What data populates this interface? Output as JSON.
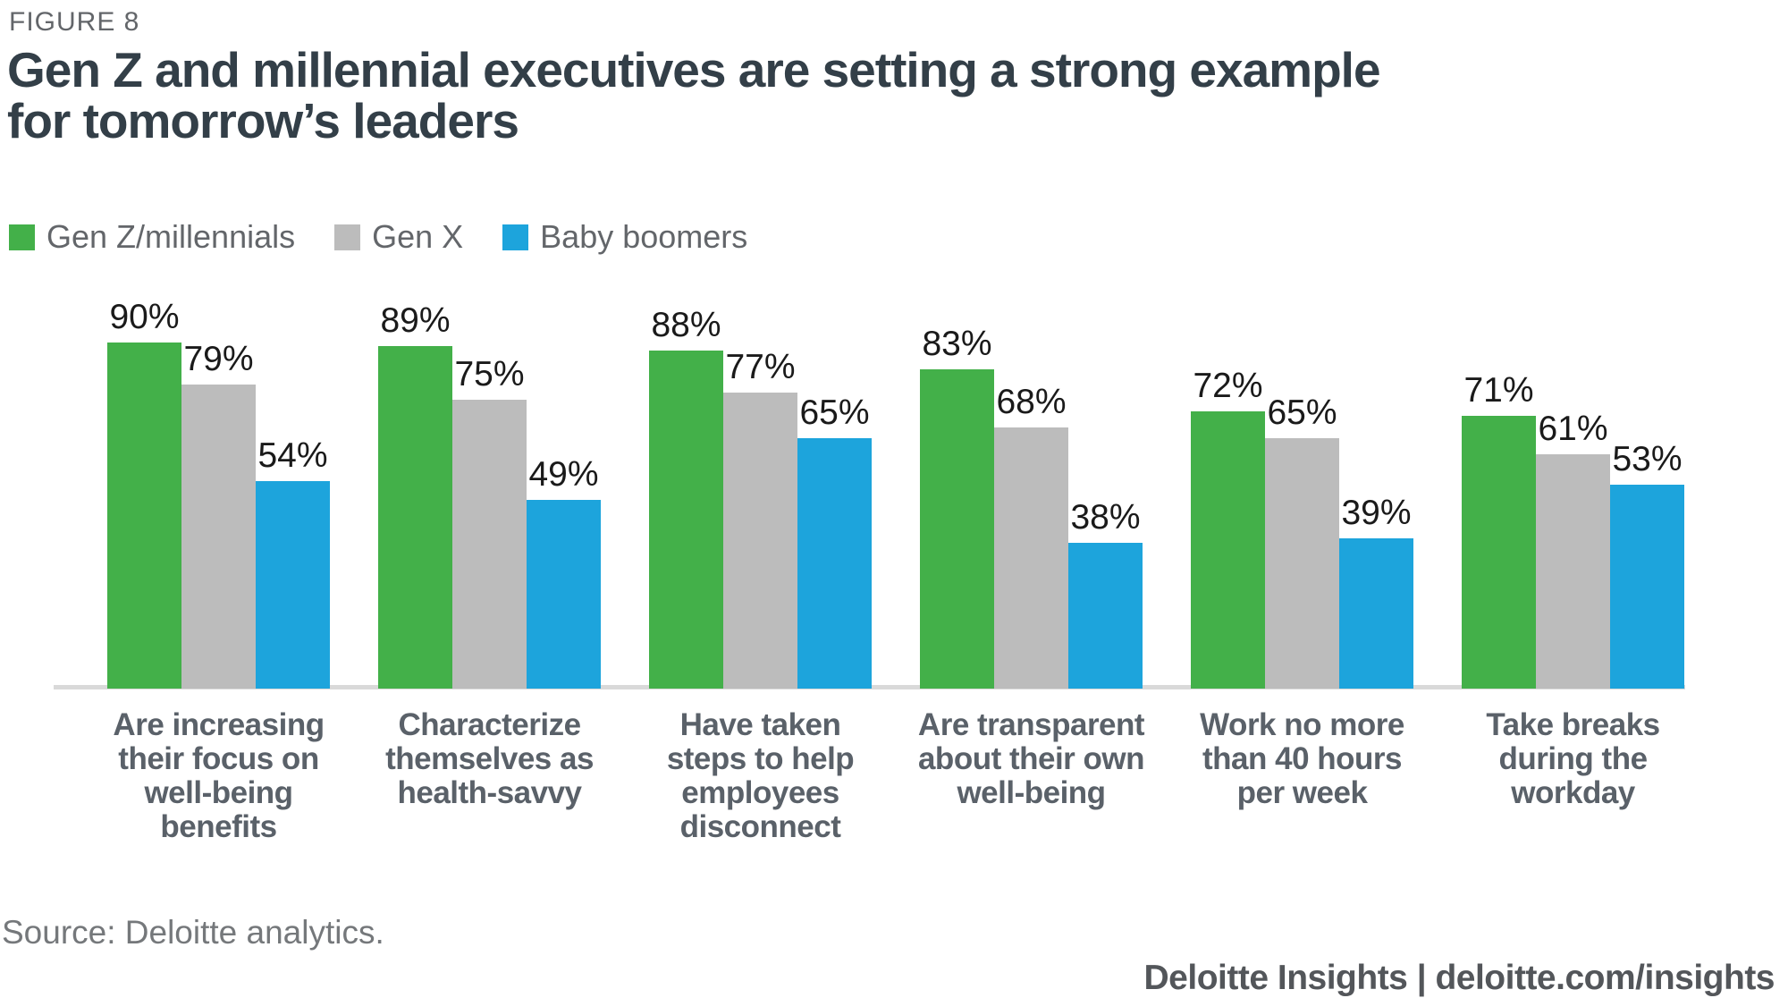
{
  "figure_label": "FIGURE 8",
  "title_lines": [
    "Gen Z and millennial executives are setting a strong example",
    "for tomorrow’s leaders"
  ],
  "legend": [
    {
      "label": "Gen Z/millennials",
      "color": "#43B049"
    },
    {
      "label": "Gen X",
      "color": "#BCBCBC"
    },
    {
      "label": "Baby boomers",
      "color": "#1DA4DC"
    }
  ],
  "chart_data": {
    "type": "bar",
    "title": "Gen Z and millennial executives are setting a strong example for tomorrow’s leaders",
    "categories": [
      "Are increasing their focus on well-being benefits",
      "Characterize themselves as health-savvy",
      "Have taken steps to help employees disconnect",
      "Are transparent about their own well-being",
      "Work no more than 40 hours per week",
      "Take breaks during the workday"
    ],
    "category_lines": [
      [
        "Are increasing",
        "their focus on",
        "well-being",
        "benefits"
      ],
      [
        "Characterize",
        "themselves as",
        "health-savvy"
      ],
      [
        "Have taken",
        "steps to help",
        "employees",
        "disconnect"
      ],
      [
        "Are transparent",
        "about their own",
        "well-being"
      ],
      [
        "Work no more",
        "than 40 hours",
        "per week"
      ],
      [
        "Take breaks",
        "during the",
        "workday"
      ]
    ],
    "series": [
      {
        "name": "Gen Z/millennials",
        "color": "#43B049",
        "values": [
          90,
          89,
          88,
          83,
          72,
          71
        ]
      },
      {
        "name": "Gen X",
        "color": "#BCBCBC",
        "values": [
          79,
          75,
          77,
          68,
          65,
          61
        ]
      },
      {
        "name": "Baby boomers",
        "color": "#1DA4DC",
        "values": [
          54,
          49,
          65,
          38,
          39,
          53
        ]
      }
    ],
    "value_suffix": "%",
    "ylim": [
      0,
      100
    ],
    "xlabel": "",
    "ylabel": "",
    "grid": false,
    "legend_position": "top-left"
  },
  "source": "Source: Deloitte analytics.",
  "footer": "Deloitte Insights | deloitte.com/insights"
}
